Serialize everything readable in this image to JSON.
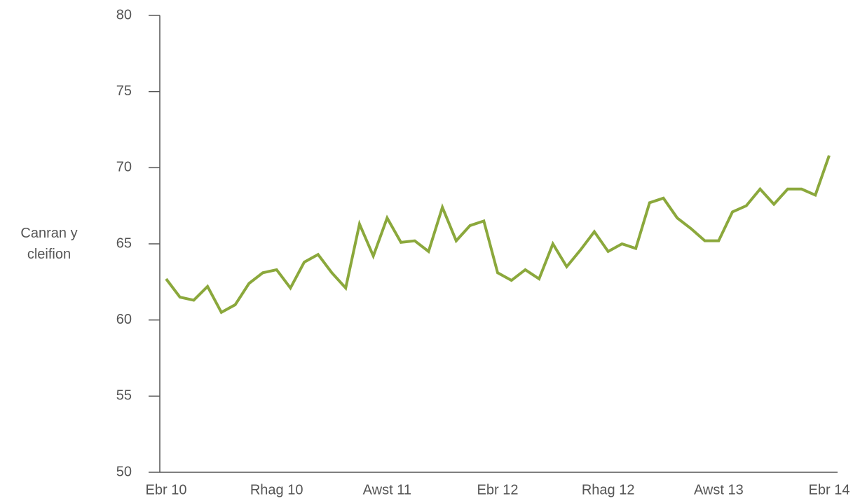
{
  "chart_data": {
    "type": "line",
    "y_label": "Canran y cleifion",
    "categories": [
      "Ebr 10",
      null,
      null,
      null,
      null,
      null,
      null,
      null,
      "Rhag 10",
      null,
      null,
      null,
      null,
      null,
      null,
      null,
      "Awst 11",
      null,
      null,
      null,
      null,
      null,
      null,
      null,
      "Ebr 12",
      null,
      null,
      null,
      null,
      null,
      null,
      null,
      "Rhag 12",
      null,
      null,
      null,
      null,
      null,
      null,
      null,
      "Awst 13",
      null,
      null,
      null,
      null,
      null,
      null,
      null,
      "Ebr 14"
    ],
    "series": [
      {
        "color": "#8ba83c",
        "values": [
          62.7,
          61.5,
          61.3,
          62.2,
          60.5,
          61.0,
          62.4,
          63.1,
          63.3,
          62.1,
          63.8,
          64.3,
          63.1,
          62.1,
          66.3,
          64.2,
          66.7,
          65.1,
          65.2,
          64.5,
          67.4,
          65.2,
          66.2,
          66.5,
          63.1,
          62.6,
          63.3,
          62.7,
          65.0,
          63.5,
          64.6,
          65.8,
          64.5,
          65.0,
          64.7,
          67.7,
          68.0,
          66.7,
          66.0,
          65.2,
          65.2,
          67.1,
          67.5,
          68.6,
          67.6,
          68.6,
          68.6,
          68.2,
          70.8
        ]
      }
    ],
    "ylim": [
      50,
      80
    ],
    "yticks": [
      50,
      55,
      60,
      65,
      70,
      75,
      80
    ],
    "grid": false
  }
}
